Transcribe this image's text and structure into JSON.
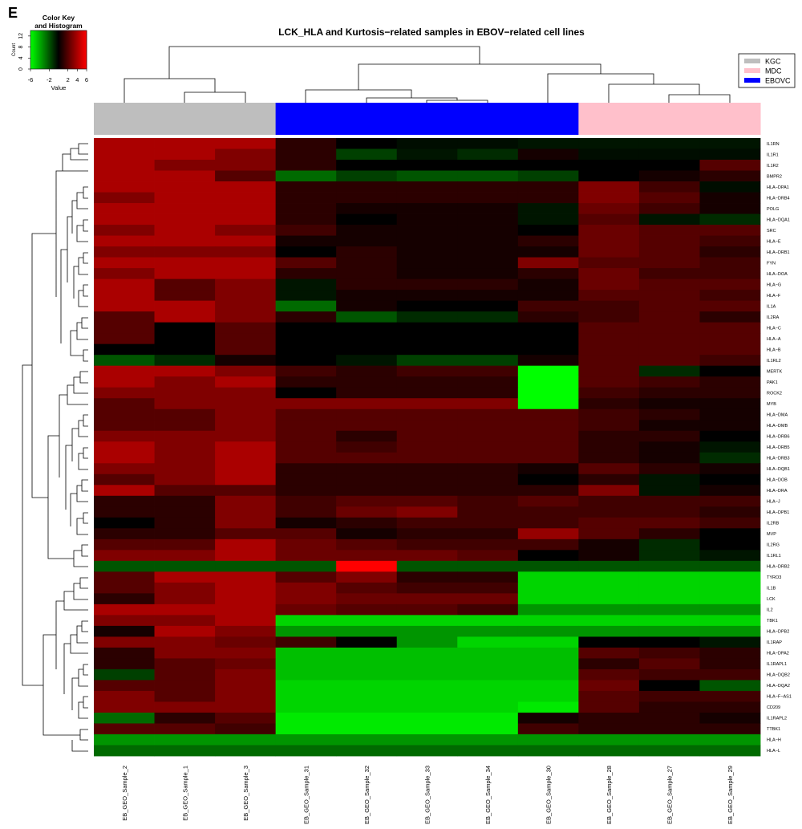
{
  "chart_data": {
    "type": "heatmap",
    "panel_label": "E",
    "title": "LCK_HLA and Kurtosis−related samples in EBOV−related cell lines",
    "columns": [
      "EB_GEO_Sample_2",
      "EB_GEO_Sample_1",
      "EB_GEO_Sample_3",
      "EB_GEO_Sample_31",
      "EB_GEO_Sample_32",
      "EB_GEO_Sample_33",
      "EB_GEO_Sample_34",
      "EB_GEO_Sample_30",
      "EB_GEO_Sample_28",
      "EB_GEO_Sample_27",
      "EB_GEO_Sample_29"
    ],
    "groups": [
      {
        "name": "KGC",
        "color": "#bebebe"
      },
      {
        "name": "MDC",
        "color": "#ffc0cb"
      },
      {
        "name": "EBOVC",
        "color": "#0000ff"
      }
    ],
    "column_group": [
      0,
      0,
      0,
      2,
      2,
      2,
      2,
      2,
      1,
      1,
      1
    ],
    "rows": [
      "IL1RN",
      "IL1R1",
      "IL1R2",
      "BMPR2",
      "HLA−DPA1",
      "HLA−DRB4",
      "POLG",
      "HLA−DQA1",
      "SRC",
      "HLA−E",
      "HLA−DRB1",
      "FYN",
      "HLA−DOA",
      "HLA−G",
      "HLA−F",
      "IL1A",
      "IL2RA",
      "HLA−C",
      "HLA−A",
      "HLA−B",
      "IL1RL2",
      "MERTK",
      "PAK1",
      "ROCK2",
      "MYB",
      "HLA−DMA",
      "HLA−DMB",
      "HLA−DRB6",
      "HLA−DRB5",
      "HLA−DRB3",
      "HLA−DQB1",
      "HLA−DOB",
      "HLA−DRA",
      "HLA−J",
      "HLA−DPB1",
      "IL2RB",
      "MVP",
      "IL2RG",
      "IL1RL1",
      "HLA−DRB2",
      "TYRO3",
      "IL1B",
      "LCK",
      "IL2",
      "TBK1",
      "HLA−DPB2",
      "IL1RAP",
      "HLA−DPA2",
      "IL1RAPL1",
      "HLA−DQB2",
      "HLA−DQA2",
      "HLA−F−AS1",
      "CD209",
      "IL1RAPL2",
      "TTBK1",
      "HLA−H",
      "HLA−L"
    ],
    "values": [
      [
        4,
        4,
        4,
        1,
        0,
        -0.3,
        -0.3,
        -0.5,
        -0.5,
        -0.5,
        -0.5
      ],
      [
        4,
        4,
        3,
        1,
        -1.5,
        -0.5,
        -1,
        0.5,
        -0.3,
        -0.3,
        -0.3
      ],
      [
        4,
        3,
        3,
        1,
        0,
        0,
        0,
        0,
        0,
        0,
        2
      ],
      [
        4,
        4,
        2,
        -2.5,
        -1.5,
        -2,
        -2,
        -1.5,
        0,
        0.5,
        1
      ],
      [
        4,
        4,
        4,
        1,
        1,
        1,
        1,
        1,
        3,
        1.5,
        -0.3
      ],
      [
        3,
        4,
        4,
        1,
        1,
        1,
        1,
        1,
        3,
        2,
        0.5
      ],
      [
        4,
        4,
        4,
        1,
        0.5,
        0.5,
        0.5,
        -0.5,
        2.5,
        1.5,
        0.5
      ],
      [
        4,
        4,
        4,
        1,
        0,
        0.5,
        0.5,
        -0.5,
        2,
        -0.5,
        -1
      ],
      [
        3,
        4,
        3,
        1.5,
        0.5,
        0.5,
        0.5,
        0,
        2.5,
        2,
        2
      ],
      [
        4,
        4,
        4,
        0.5,
        0.5,
        0.5,
        0.5,
        1,
        2.5,
        2,
        1.5
      ],
      [
        3,
        3,
        3,
        0,
        1,
        0.5,
        0.5,
        0.5,
        2.5,
        2,
        1
      ],
      [
        4,
        4,
        4,
        2,
        1,
        0.5,
        0.5,
        3,
        2,
        2,
        1.5
      ],
      [
        3,
        4,
        4,
        1,
        1,
        0.5,
        0.5,
        1,
        2.5,
        1.5,
        1.5
      ],
      [
        4,
        2,
        3,
        -0.5,
        1,
        1,
        1,
        0.5,
        2.5,
        2,
        2
      ],
      [
        4,
        2,
        3,
        -0.5,
        0.5,
        0.5,
        0.5,
        0.5,
        2,
        2,
        1.5
      ],
      [
        4,
        4,
        3,
        -2.5,
        0.5,
        0,
        0,
        1.5,
        1.5,
        2,
        2
      ],
      [
        2,
        4,
        3,
        1,
        -2,
        -1,
        -1,
        1,
        1.5,
        2,
        1
      ],
      [
        2,
        0,
        2,
        0,
        0,
        0,
        0,
        0,
        2,
        2,
        2
      ],
      [
        2,
        0,
        2,
        0,
        0,
        0,
        0,
        0,
        2,
        2,
        2
      ],
      [
        0,
        0,
        2,
        0,
        0,
        0,
        0,
        0,
        2,
        2,
        2
      ],
      [
        -2,
        -1,
        0.5,
        0,
        -0.5,
        -1.5,
        -1.5,
        0.5,
        2,
        2,
        1.5
      ],
      [
        4,
        4,
        3,
        1.5,
        1,
        1.5,
        1.5,
        -6,
        2,
        -1,
        0
      ],
      [
        4,
        3,
        4,
        1,
        1,
        1,
        1,
        -6,
        2,
        1.5,
        1
      ],
      [
        3,
        3,
        3,
        0,
        1,
        1,
        1,
        -6,
        1.5,
        1,
        1
      ],
      [
        2,
        3,
        3,
        3,
        3,
        3,
        3,
        -6,
        1,
        0.5,
        0.5
      ],
      [
        2,
        2,
        3,
        2,
        2,
        2,
        2,
        2,
        1.5,
        1,
        0.5
      ],
      [
        2,
        2,
        3,
        2,
        2,
        2,
        2,
        2,
        1.5,
        0.5,
        0.5
      ],
      [
        3,
        3,
        3,
        2,
        1,
        2,
        2,
        2,
        1,
        1,
        0
      ],
      [
        4,
        3,
        4,
        2,
        1.5,
        2,
        2,
        2,
        1,
        0.5,
        -0.5
      ],
      [
        4,
        3,
        4,
        2,
        2,
        2,
        2,
        2,
        1,
        0.5,
        -1
      ],
      [
        3,
        3,
        4,
        1,
        1,
        1,
        1,
        0.5,
        2,
        1,
        0.5
      ],
      [
        2,
        3,
        4,
        1,
        1,
        1,
        1,
        0,
        1,
        -0.5,
        0
      ],
      [
        4,
        2,
        2,
        1,
        1,
        1,
        1,
        1,
        3,
        -0.5,
        0.5
      ],
      [
        1,
        1,
        3,
        1.5,
        2,
        2,
        1.5,
        2,
        1.5,
        1.5,
        1.5
      ],
      [
        1,
        1,
        3,
        1.5,
        2.5,
        3,
        1.5,
        1.5,
        1.5,
        1.5,
        1
      ],
      [
        0,
        1,
        3,
        0.5,
        1,
        1.5,
        1.5,
        1.5,
        2,
        2,
        1.5
      ],
      [
        1,
        1,
        2,
        2,
        0.5,
        1,
        1,
        3.5,
        2,
        1,
        0
      ],
      [
        2,
        2,
        4,
        2.5,
        2,
        1.5,
        1.5,
        1.5,
        0.5,
        -1,
        0
      ],
      [
        3,
        3,
        4,
        2.5,
        2.5,
        2.5,
        2,
        0,
        0.5,
        -1,
        -0.5
      ],
      [
        -2,
        -2,
        -2,
        -2,
        6,
        -2,
        -2,
        -2,
        -2,
        -2,
        -2
      ],
      [
        2,
        4,
        4,
        2,
        3,
        1,
        1,
        -5,
        -5,
        -5,
        -5
      ],
      [
        2,
        3,
        4,
        3,
        2,
        1.5,
        1.5,
        -5,
        -5,
        -5,
        -5
      ],
      [
        1,
        3,
        4,
        3,
        2.5,
        2.5,
        2.5,
        -5,
        -5,
        -5,
        -5
      ],
      [
        4,
        4,
        4,
        2.5,
        2,
        2,
        1.5,
        -3.5,
        -3.5,
        -3.5,
        -3.5
      ],
      [
        3,
        3,
        4,
        -5,
        -5,
        -5,
        -5,
        -5,
        -5,
        -5,
        -5
      ],
      [
        0.5,
        4,
        3,
        -3.5,
        -3.5,
        -3.5,
        -3.5,
        -3.5,
        -3.5,
        -3.5,
        -3.5
      ],
      [
        3,
        3,
        2.5,
        1.5,
        0,
        -3.5,
        -5,
        -5,
        0,
        0,
        -0.5
      ],
      [
        1,
        3,
        3,
        -4.5,
        -4.5,
        -4.5,
        -4.5,
        -4.5,
        2,
        1.5,
        1
      ],
      [
        1,
        2,
        2.5,
        -4.5,
        -4.5,
        -4.5,
        -4.5,
        -4.5,
        1,
        2,
        1
      ],
      [
        -1.5,
        2,
        3,
        -4.5,
        -4.5,
        -4.5,
        -4.5,
        -4.5,
        2,
        1.5,
        1.5
      ],
      [
        2,
        2,
        3,
        -5,
        -5,
        -5,
        -5,
        -5,
        2.5,
        0,
        -2
      ],
      [
        3,
        2,
        3,
        -5,
        -5,
        -5,
        -5,
        -5,
        2,
        1.5,
        1.5
      ],
      [
        3,
        3,
        3,
        -5,
        -5,
        -5,
        -5,
        -5.5,
        2,
        1,
        1
      ],
      [
        -2.5,
        1,
        2,
        -5.5,
        -5.5,
        -5.5,
        -5.5,
        0.5,
        1,
        1,
        0.5
      ],
      [
        2,
        2,
        1.5,
        -5.5,
        -5.5,
        -5.5,
        -5.5,
        1.5,
        1,
        1,
        1
      ],
      [
        -3.5,
        -3.5,
        -3.5,
        -3.5,
        -3.5,
        -3.5,
        -3.5,
        -3.5,
        -3.5,
        -3.5,
        -3.5
      ],
      [
        -2.5,
        -2.5,
        -2.5,
        -2.5,
        -2.5,
        -2.5,
        -2.5,
        -2.5,
        -2.5,
        -2.5,
        -2.5
      ]
    ],
    "zlim": [
      -6,
      6
    ],
    "colors": {
      "low": "#00ff00",
      "mid": "#000000",
      "high": "#ff0000"
    },
    "legend_position": "top-right",
    "color_key": {
      "title": [
        "Color Key",
        "and Histogram"
      ],
      "xlabel": "Value",
      "ylabel": "Count",
      "xlim": [
        -6,
        6
      ],
      "xticks": [
        -6,
        -2,
        2,
        4,
        6
      ],
      "ylim": [
        0,
        14
      ],
      "yticks": [
        0,
        4,
        8,
        12
      ]
    }
  }
}
